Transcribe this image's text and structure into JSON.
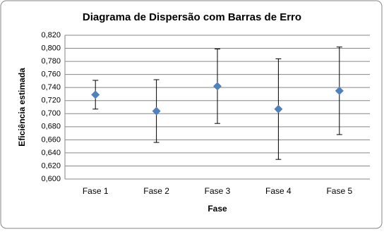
{
  "chart_data": {
    "type": "errorbar",
    "title": "Diagrama de Dispersão com Barras de Erro",
    "x_label": "Fase",
    "y_label": "Eficiência estimada",
    "categories": [
      "Fase 1",
      "Fase 2",
      "Fase 3",
      "Fase 4",
      "Fase 5"
    ],
    "values": [
      0.729,
      0.704,
      0.742,
      0.707,
      0.735
    ],
    "errors": [
      0.022,
      0.048,
      0.057,
      0.077,
      0.067
    ],
    "color": "#4f81bd",
    "ylim": [
      0.6,
      0.82
    ],
    "yticks": [
      {
        "value": 0.6,
        "label": "0,600"
      },
      {
        "value": 0.62,
        "label": "0,620"
      },
      {
        "value": 0.64,
        "label": "0,640"
      },
      {
        "value": 0.66,
        "label": "0,660"
      },
      {
        "value": 0.68,
        "label": "0,680"
      },
      {
        "value": 0.7,
        "label": "0,700"
      },
      {
        "value": 0.72,
        "label": "0,720"
      },
      {
        "value": 0.74,
        "label": "0,740"
      },
      {
        "value": 0.76,
        "label": "0,760"
      },
      {
        "value": 0.78,
        "label": "0,780"
      },
      {
        "value": 0.8,
        "label": "0,800"
      },
      {
        "value": 0.82,
        "label": "0,820"
      }
    ],
    "grid": true
  }
}
